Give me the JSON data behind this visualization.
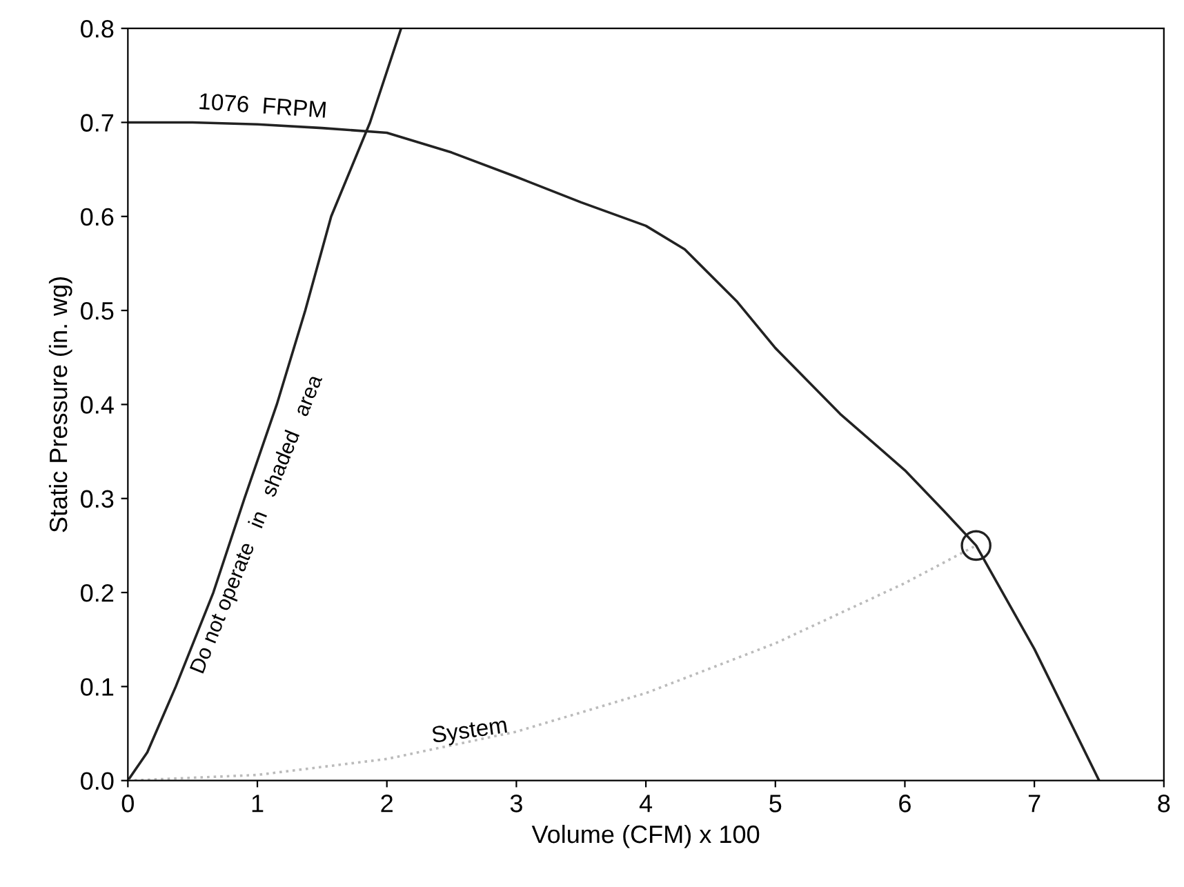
{
  "chart_data": {
    "type": "line",
    "xlabel": "Volume (CFM) x 100",
    "ylabel": "Static Pressure (in. wg)",
    "xlim": [
      0,
      8
    ],
    "ylim": [
      0,
      0.8
    ],
    "xticks": [
      0,
      1,
      2,
      3,
      4,
      5,
      6,
      7,
      8
    ],
    "yticks": [
      {
        "value": 0,
        "label": "0.0"
      },
      {
        "value": 0.1,
        "label": "0.1"
      },
      {
        "value": 0.2,
        "label": "0.2"
      },
      {
        "value": 0.3,
        "label": "0.3"
      },
      {
        "value": 0.4,
        "label": "0.4"
      },
      {
        "value": 0.5,
        "label": "0.5"
      },
      {
        "value": 0.6,
        "label": "0.6"
      },
      {
        "value": 0.7,
        "label": "0.7"
      },
      {
        "value": 0.8,
        "label": "0.8"
      }
    ],
    "grid": false,
    "legend": false,
    "series": [
      {
        "color": "#222222",
        "x": [
          0,
          0.5,
          1,
          1.5,
          2,
          2.5,
          3,
          3.5,
          4,
          4.3,
          4.7,
          5,
          5.5,
          6,
          6.3,
          6.55,
          7,
          7.5
        ],
        "values": [
          0.7,
          0.7,
          0.698,
          0.694,
          0.689,
          0.668,
          0.642,
          0.615,
          0.59,
          0.565,
          0.51,
          0.46,
          0.39,
          0.33,
          0.287,
          0.25,
          0.14,
          0
        ]
      },
      {
        "color": "#222222",
        "x": [
          0,
          0.15,
          0.37,
          0.66,
          0.9,
          1.15,
          1.37,
          1.57,
          1.87,
          2.11
        ],
        "values": [
          0,
          0.03,
          0.1,
          0.2,
          0.3,
          0.4,
          0.5,
          0.6,
          0.7,
          0.8
        ]
      },
      {
        "color": "#bbbbbb",
        "line_style": "dotted",
        "x": [
          0,
          1,
          2,
          3,
          4,
          5,
          6,
          6.55
        ],
        "values": [
          0,
          0.006,
          0.023,
          0.052,
          0.093,
          0.146,
          0.21,
          0.25
        ]
      },
      {
        "type": "scatter",
        "color": "#222222",
        "marker": "circle",
        "x": [
          6.55
        ],
        "values": [
          0.25
        ]
      }
    ],
    "annotations": [
      "1076  FRPM",
      "System",
      "Do not operate   in   shaded   area"
    ]
  }
}
